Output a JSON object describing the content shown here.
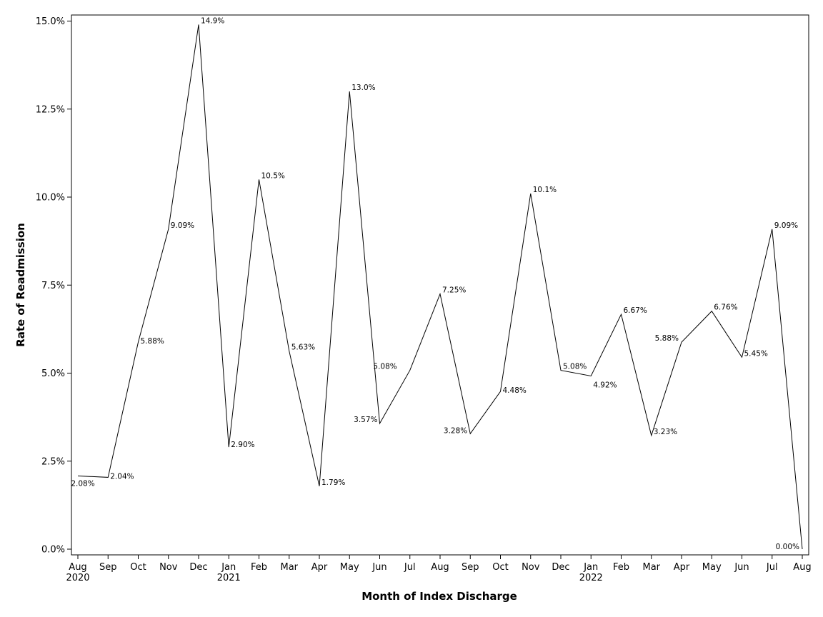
{
  "chart_data": {
    "type": "line",
    "title": "",
    "xlabel": "Month of Index Discharge",
    "ylabel": "Rate of Readmission",
    "ylim": [
      0,
      15
    ],
    "yticks": [
      0,
      2.5,
      5,
      7.5,
      10,
      12.5,
      15
    ],
    "ytick_labels": [
      "0.0%",
      "2.5%",
      "5.0%",
      "7.5%",
      "10.0%",
      "12.5%",
      "15.0%"
    ],
    "grid": false,
    "legend": "none",
    "months": [
      "Aug",
      "Sep",
      "Oct",
      "Nov",
      "Dec",
      "Jan",
      "Feb",
      "Mar",
      "Apr",
      "May",
      "Jun",
      "Jul",
      "Aug",
      "Sep",
      "Oct",
      "Nov",
      "Dec",
      "Jan",
      "Feb",
      "Mar",
      "Apr",
      "May",
      "Jun",
      "Jul",
      "Aug"
    ],
    "year_labels": [
      {
        "index": 0,
        "text": "2020"
      },
      {
        "index": 5,
        "text": "2021"
      },
      {
        "index": 17,
        "text": "2022"
      }
    ],
    "values": [
      2.08,
      2.04,
      5.88,
      9.09,
      14.9,
      2.9,
      10.5,
      5.63,
      1.79,
      13.0,
      3.57,
      5.08,
      7.25,
      3.28,
      4.48,
      10.1,
      5.08,
      4.92,
      6.67,
      3.23,
      5.88,
      6.76,
      5.45,
      9.09,
      0.0
    ],
    "value_labels": [
      "2.08%",
      "2.04%",
      "5.88%",
      "9.09%",
      "14.9%",
      "2.90%",
      "10.5%",
      "5.63%",
      "1.79%",
      "13.0%",
      "3.57%",
      "5.08%",
      "7.25%",
      "3.28%",
      "4.48%",
      "10.1%",
      "5.08%",
      "4.92%",
      "6.67%",
      "3.23%",
      "5.88%",
      "6.76%",
      "5.45%",
      "9.09%",
      "0.00%"
    ]
  }
}
